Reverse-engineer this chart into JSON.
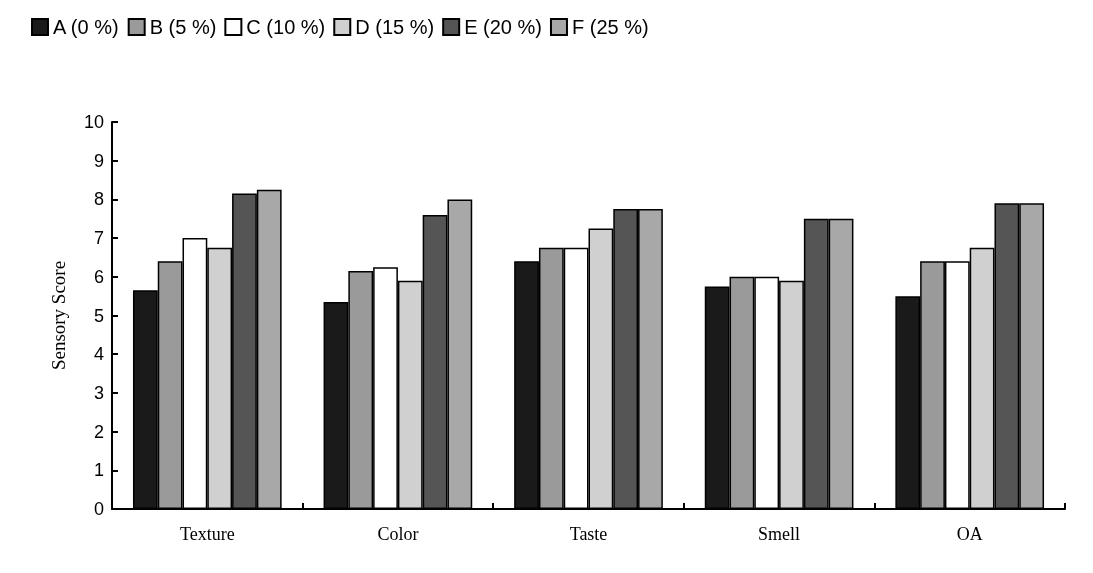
{
  "chart_data": {
    "type": "bar",
    "ylabel": "Sensory Score",
    "categories": [
      "Texture",
      "Color",
      "Taste",
      "Smell",
      "OA"
    ],
    "series": [
      {
        "name": "A (0 %)",
        "color": "#1a1a1a",
        "values": [
          5.65,
          5.35,
          6.4,
          5.75,
          5.5
        ]
      },
      {
        "name": "B (5 %)",
        "color": "#9a9a9a",
        "values": [
          6.4,
          6.15,
          6.75,
          6.0,
          6.4
        ]
      },
      {
        "name": "C (10 %)",
        "color": "#ffffff",
        "values": [
          7.0,
          6.25,
          6.75,
          6.0,
          6.4
        ]
      },
      {
        "name": "D (15 %)",
        "color": "#d0d0d0",
        "values": [
          6.75,
          5.9,
          7.25,
          5.9,
          6.75
        ]
      },
      {
        "name": "E (20 %)",
        "color": "#555555",
        "values": [
          8.15,
          7.6,
          7.75,
          7.5,
          7.9
        ]
      },
      {
        "name": "F (25 %)",
        "color": "#a8a8a8",
        "values": [
          8.25,
          8.0,
          7.75,
          7.5,
          7.9
        ]
      }
    ],
    "ylim": [
      0,
      10
    ],
    "yticks": [
      0,
      1,
      2,
      3,
      4,
      5,
      6,
      7,
      8,
      9,
      10
    ],
    "grid": false,
    "legend": "top left"
  }
}
